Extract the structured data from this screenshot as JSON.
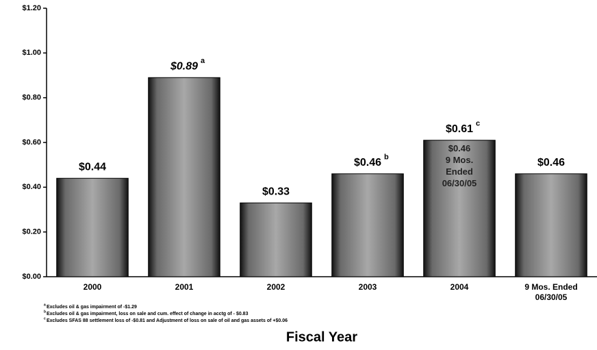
{
  "chart_data": {
    "type": "bar",
    "x_label": "Fiscal Year",
    "categories": [
      "2000",
      "2001",
      "2002",
      "2003",
      "2004",
      "9 Mos. Ended 06/30/05"
    ],
    "values": [
      0.44,
      0.89,
      0.33,
      0.46,
      0.61,
      0.46
    ],
    "value_labels": [
      "$0.44",
      "$0.89",
      "$0.33",
      "$0.46",
      "$0.61",
      "$0.46"
    ],
    "superscripts": [
      null,
      "a",
      null,
      "b",
      "c",
      null
    ],
    "inset_label": [
      "$0.46",
      "9 Mos.",
      "Ended",
      "06/30/05"
    ],
    "color": "#8c8c8c",
    "ylim": [
      0,
      1.2
    ],
    "yticks": [
      {
        "value": 0,
        "label": "$0.00"
      },
      {
        "value": 0.2,
        "label": "$0.20"
      },
      {
        "value": 0.4,
        "label": "$0.40"
      },
      {
        "value": 0.6,
        "label": "$0.60"
      },
      {
        "value": 0.8,
        "label": "$0.80"
      },
      {
        "value": 1.0,
        "label": "$1.00"
      },
      {
        "value": 1.2,
        "label": "$1.20"
      }
    ],
    "footnotes": [
      {
        "marker": "a",
        "text": "Excludes oil & gas impairment of -$1.29"
      },
      {
        "marker": "b",
        "text": "Excludes oil & gas impairment, loss on sale and cum. effect of change in acctg of - $0.83"
      },
      {
        "marker": "c",
        "text": "Excludes SFAS 88 settlement loss of -$0.81 and Adjustment of loss on sale of oil and gas assets of +$0.06"
      }
    ]
  }
}
